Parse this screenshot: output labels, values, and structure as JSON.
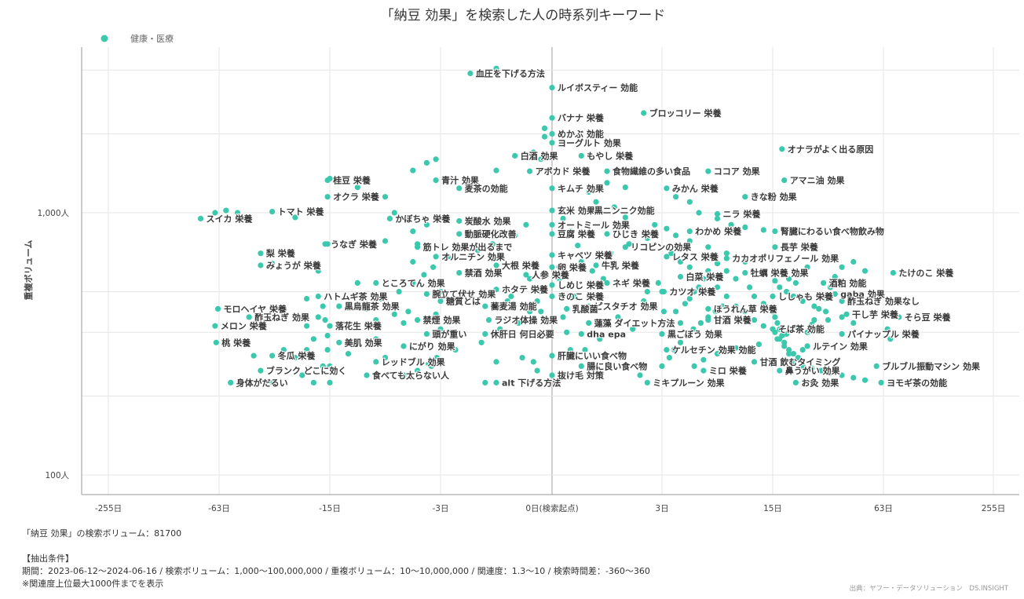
{
  "chart_data": {
    "type": "scatter",
    "title": "「納豆 効果」を検索した人の時系列キーワード",
    "ylabel": "重複ボリューム",
    "legend": [
      {
        "name": "健康・医療",
        "color": "#3cc8ad"
      }
    ],
    "x_ticks": [
      {
        "label": "-255日",
        "pos": -255
      },
      {
        "label": "-63日",
        "pos": -63
      },
      {
        "label": "-15日",
        "pos": -15
      },
      {
        "label": "-3日",
        "pos": -3
      },
      {
        "label": "0日(検索起点)",
        "pos": 0
      },
      {
        "label": "3日",
        "pos": 3
      },
      {
        "label": "15日",
        "pos": 15
      },
      {
        "label": "63日",
        "pos": 63
      },
      {
        "label": "255日",
        "pos": 255
      }
    ],
    "y_ticks": [
      {
        "label": "100人",
        "value": 100
      },
      {
        "label": "1,000人",
        "value": 1000
      }
    ],
    "ylim": [
      85,
      5500
    ],
    "labeled_points": [
      {
        "label": "血圧を下げる方法",
        "x": -2.2,
        "y": 3400
      },
      {
        "label": "ルイボスティー 効能",
        "x": 0,
        "y": 3000
      },
      {
        "label": "ブロッコリー 栄養",
        "x": 2.5,
        "y": 2400
      },
      {
        "label": "バナナ 栄養",
        "x": 0,
        "y": 2300
      },
      {
        "label": "めかぶ 効能",
        "x": 0,
        "y": 2000
      },
      {
        "label": "ヨーグルト 効果",
        "x": 0,
        "y": 1850
      },
      {
        "label": "オナラがよく出る原因",
        "x": 19,
        "y": 1750
      },
      {
        "label": "白酒 効果",
        "x": -1,
        "y": 1650
      },
      {
        "label": "もやし 栄養",
        "x": 0.8,
        "y": 1650
      },
      {
        "label": "アボカド 栄養",
        "x": -0.6,
        "y": 1440
      },
      {
        "label": "食物繊維の多い食品",
        "x": 1.5,
        "y": 1440
      },
      {
        "label": "ココア 効果",
        "x": 8,
        "y": 1440
      },
      {
        "label": "青汁 効果",
        "x": -3.5,
        "y": 1330
      },
      {
        "label": "桂豆 栄養",
        "x": -16,
        "y": 1330
      },
      {
        "label": "アマニ油 効果",
        "x": 20,
        "y": 1330
      },
      {
        "label": "麦茶の効能",
        "x": -2.5,
        "y": 1240
      },
      {
        "label": "キムチ 効果",
        "x": 0,
        "y": 1240
      },
      {
        "label": "みかん 栄養",
        "x": 3.5,
        "y": 1240
      },
      {
        "label": "オクラ 栄養",
        "x": -16,
        "y": 1150
      },
      {
        "label": "きな粉 効果",
        "x": 12,
        "y": 1150
      },
      {
        "label": "スイカ 栄養",
        "x": -95,
        "y": 950
      },
      {
        "label": "トマト 栄養",
        "x": -40,
        "y": 1010
      },
      {
        "label": "玄米 効果",
        "x": 0,
        "y": 1020
      },
      {
        "label": "黒ニンニク効能",
        "x": 1,
        "y": 1020
      },
      {
        "label": "ニラ 栄養",
        "x": 9,
        "y": 990
      },
      {
        "label": "かぼちゃ 栄養",
        "x": -8.5,
        "y": 950
      },
      {
        "label": "炭酸水 効果",
        "x": -2.5,
        "y": 930
      },
      {
        "label": "オートミール 効果",
        "x": 0,
        "y": 900
      },
      {
        "label": "わかめ 栄養",
        "x": 6,
        "y": 850
      },
      {
        "label": "腎臓にわるい食べ物飲み物",
        "x": 16,
        "y": 850
      },
      {
        "label": "動脈硬化改善",
        "x": -2.5,
        "y": 830
      },
      {
        "label": "豆腐 栄養",
        "x": 0,
        "y": 830
      },
      {
        "label": "ひじき 栄養",
        "x": 1.5,
        "y": 830
      },
      {
        "label": "うなぎ 栄養",
        "x": -17,
        "y": 760
      },
      {
        "label": "筋トレ 効果が出るまで",
        "x": -5.5,
        "y": 740
      },
      {
        "label": "リコピンの効果",
        "x": 2,
        "y": 740
      },
      {
        "label": "長芋 栄養",
        "x": 16,
        "y": 740
      },
      {
        "label": "梨 栄養",
        "x": -45,
        "y": 700
      },
      {
        "label": "オルニチン 効果",
        "x": -3.5,
        "y": 680
      },
      {
        "label": "キャベツ 栄養",
        "x": 0,
        "y": 690
      },
      {
        "label": "レタス 栄養",
        "x": 3.5,
        "y": 680
      },
      {
        "label": "カカオポリフェノール 効果",
        "x": 10,
        "y": 670
      },
      {
        "label": "みょうが 栄養",
        "x": -45,
        "y": 630
      },
      {
        "label": "大根 栄養",
        "x": -1.5,
        "y": 630
      },
      {
        "label": "卵 栄養",
        "x": 0,
        "y": 620
      },
      {
        "label": "牛乳 栄養",
        "x": 1.2,
        "y": 630
      },
      {
        "label": "禁酒 効果",
        "x": -2.5,
        "y": 590
      },
      {
        "label": "人参 栄養",
        "x": -0.7,
        "y": 580
      },
      {
        "label": "牡蠣 栄養 効果",
        "x": 12,
        "y": 590
      },
      {
        "label": "たけのこ 栄養",
        "x": 80,
        "y": 590
      },
      {
        "label": "白菜 栄養",
        "x": 5,
        "y": 570
      },
      {
        "label": "ところてん 効果",
        "x": -10,
        "y": 540
      },
      {
        "label": "しめじ 栄養",
        "x": 0,
        "y": 530
      },
      {
        "label": "ネギ 栄養",
        "x": 1.5,
        "y": 540
      },
      {
        "label": "酒粕 効能",
        "x": 37,
        "y": 540
      },
      {
        "label": "ホタテ 栄養",
        "x": -1.5,
        "y": 510
      },
      {
        "label": "カツオ 栄養",
        "x": 3.2,
        "y": 500
      },
      {
        "label": "腕立て伏せ 効果",
        "x": -4.5,
        "y": 490
      },
      {
        "label": "ハトムギ茶 効果",
        "x": -20,
        "y": 480
      },
      {
        "label": "きのこ 栄養",
        "x": 0,
        "y": 480
      },
      {
        "label": "ししゃも 栄養",
        "x": 15,
        "y": 480
      },
      {
        "label": "gaba 効果",
        "x": 42,
        "y": 490
      },
      {
        "label": "糖質とは",
        "x": -3,
        "y": 460
      },
      {
        "label": "酢玉ねぎ 効果なし",
        "x": 45,
        "y": 460
      },
      {
        "label": "黒烏龍茶 効果",
        "x": -14,
        "y": 440
      },
      {
        "label": "蕎麦湯 効能",
        "x": -1.8,
        "y": 440
      },
      {
        "label": "ピスタチオ 効果",
        "x": 1,
        "y": 440
      },
      {
        "label": "モロヘイヤ 栄養",
        "x": -65,
        "y": 430
      },
      {
        "label": "乳酸菌",
        "x": 0.4,
        "y": 430
      },
      {
        "label": "ほうれん草 栄養",
        "x": 8,
        "y": 430
      },
      {
        "label": "干し芋 栄養",
        "x": 47,
        "y": 410
      },
      {
        "label": "酢玉ねぎ 効果",
        "x": -50,
        "y": 400
      },
      {
        "label": "そら豆 栄養",
        "x": 90,
        "y": 400
      },
      {
        "label": "禁煙 効果",
        "x": -5.5,
        "y": 390
      },
      {
        "label": "ラジオ体操 効果",
        "x": -1.7,
        "y": 390
      },
      {
        "label": "甘酒 栄養",
        "x": 8,
        "y": 390
      },
      {
        "label": "蓮藻 ダイエット方法",
        "x": 1,
        "y": 380
      },
      {
        "label": "メロン 栄養",
        "x": -70,
        "y": 370
      },
      {
        "label": "落花生 栄養",
        "x": -15,
        "y": 370
      },
      {
        "label": "そば茶 効能",
        "x": 15,
        "y": 360
      },
      {
        "label": "頭が重い",
        "x": -4.5,
        "y": 345
      },
      {
        "label": "休肝日 何日必要",
        "x": -1.8,
        "y": 345
      },
      {
        "label": "dha epa",
        "x": 0.8,
        "y": 345
      },
      {
        "label": "黒ごぼう 効果",
        "x": 3,
        "y": 345
      },
      {
        "label": "パイナップル 栄養",
        "x": 45,
        "y": 345
      },
      {
        "label": "桃 栄養",
        "x": -68,
        "y": 320
      },
      {
        "label": "美肌 効果",
        "x": -14,
        "y": 320
      },
      {
        "label": "ルテイン 効果",
        "x": 30,
        "y": 310
      },
      {
        "label": "にがり 効果",
        "x": -7,
        "y": 310
      },
      {
        "label": "ケルセチン 効果 効能",
        "x": 3.5,
        "y": 300
      },
      {
        "label": "冬瓜 栄養",
        "x": -40,
        "y": 285
      },
      {
        "label": "肝臓にいい食べ物",
        "x": 0,
        "y": 285
      },
      {
        "label": "レッドブル 効果",
        "x": -10,
        "y": 270
      },
      {
        "label": "甘酒 飲むタイミング",
        "x": 13,
        "y": 270
      },
      {
        "label": "腸に良い食べ物",
        "x": 0.8,
        "y": 260
      },
      {
        "label": "ブルブル振動マシン 効果",
        "x": 60,
        "y": 260
      },
      {
        "label": "ブランク どこに効く",
        "x": -45,
        "y": 250
      },
      {
        "label": "ミロ 栄養",
        "x": 7.5,
        "y": 250
      },
      {
        "label": "鼻うがい 効果",
        "x": 18,
        "y": 250
      },
      {
        "label": "食べても太らない人",
        "x": -11,
        "y": 240
      },
      {
        "label": "抜け毛 対策",
        "x": 0,
        "y": 240
      },
      {
        "label": "身体がだるい",
        "x": -58,
        "y": 225
      },
      {
        "label": "alt 下げる方法",
        "x": -1.5,
        "y": 225
      },
      {
        "label": "ミキプルーン 効果",
        "x": 2.6,
        "y": 225
      },
      {
        "label": "お灸 効果",
        "x": 25,
        "y": 225
      },
      {
        "label": "ヨモギ茶の効能",
        "x": 62,
        "y": 225
      }
    ],
    "other_points": [
      [
        -1.5,
        3550
      ],
      [
        -6,
        1450
      ],
      [
        -4.5,
        1550
      ],
      [
        -3.5,
        1600
      ],
      [
        -1.5,
        1450
      ],
      [
        -15,
        1350
      ],
      [
        -12,
        1250
      ],
      [
        -9,
        1150
      ],
      [
        -0.2,
        2100
      ],
      [
        -0.2,
        1950
      ],
      [
        -0.3,
        1600
      ],
      [
        -0.5,
        1700
      ],
      [
        -70,
        1000
      ],
      [
        -55,
        1000
      ],
      [
        -60,
        1020
      ],
      [
        -30,
        960
      ],
      [
        -8,
        1000
      ],
      [
        -6,
        850
      ],
      [
        -4.5,
        900
      ],
      [
        -16,
        760
      ],
      [
        -9,
        780
      ],
      [
        -5.5,
        760
      ],
      [
        -40,
        640
      ],
      [
        -20,
        600
      ],
      [
        -6,
        650
      ],
      [
        -12,
        540
      ],
      [
        -3,
        500
      ],
      [
        -2.5,
        470
      ],
      [
        -1.2,
        460
      ],
      [
        -1.1,
        480
      ],
      [
        -0.6,
        560
      ],
      [
        -0.3,
        500
      ],
      [
        -0.3,
        420
      ],
      [
        -25,
        470
      ],
      [
        -18,
        440
      ],
      [
        -11,
        430
      ],
      [
        -8,
        410
      ],
      [
        -6.5,
        420
      ],
      [
        -3.5,
        410
      ],
      [
        -20,
        400
      ],
      [
        -17,
        390
      ],
      [
        -10,
        390
      ],
      [
        -7,
        380
      ],
      [
        -25,
        370
      ],
      [
        -3,
        360
      ],
      [
        -1.4,
        360
      ],
      [
        -16,
        340
      ],
      [
        -10,
        330
      ],
      [
        -22,
        330
      ],
      [
        -35,
        300
      ],
      [
        -25,
        300
      ],
      [
        -16,
        300
      ],
      [
        -13,
        290
      ],
      [
        -9,
        280
      ],
      [
        -48,
        285
      ],
      [
        -30,
        280
      ],
      [
        -15,
        260
      ],
      [
        -0.8,
        280
      ],
      [
        -1.5,
        270
      ],
      [
        -4,
        260
      ],
      [
        -0.5,
        270
      ],
      [
        -27,
        240
      ],
      [
        -22,
        225
      ],
      [
        -15,
        225
      ],
      [
        -40,
        225
      ],
      [
        -18,
        260
      ],
      [
        -1.8,
        225
      ],
      [
        -0.4,
        250
      ],
      [
        0.2,
        620
      ],
      [
        0.2,
        560
      ],
      [
        0.6,
        480
      ],
      [
        0.3,
        400
      ],
      [
        0.4,
        350
      ],
      [
        0.5,
        300
      ],
      [
        0.9,
        300
      ],
      [
        1.3,
        330
      ],
      [
        1.8,
        400
      ],
      [
        2.2,
        360
      ],
      [
        2.5,
        460
      ],
      [
        3,
        500
      ],
      [
        3.2,
        420
      ],
      [
        4.5,
        420
      ],
      [
        5,
        380
      ],
      [
        5.5,
        450
      ],
      [
        6,
        470
      ],
      [
        6.5,
        500
      ],
      [
        7,
        520
      ],
      [
        7.5,
        560
      ],
      [
        8,
        600
      ],
      [
        9,
        640
      ],
      [
        10,
        600
      ],
      [
        11,
        560
      ],
      [
        12.5,
        520
      ],
      [
        13,
        480
      ],
      [
        14,
        450
      ],
      [
        15,
        420
      ],
      [
        16,
        400
      ],
      [
        17,
        380
      ],
      [
        18,
        360
      ],
      [
        19,
        340
      ],
      [
        20,
        320
      ],
      [
        22,
        300
      ],
      [
        24,
        290
      ],
      [
        26,
        280
      ],
      [
        28,
        300
      ],
      [
        30,
        350
      ],
      [
        33,
        390
      ],
      [
        35,
        430
      ],
      [
        38,
        470
      ],
      [
        40,
        520
      ],
      [
        42,
        570
      ],
      [
        45,
        620
      ],
      [
        50,
        650
      ],
      [
        55,
        600
      ],
      [
        20,
        600
      ],
      [
        22,
        560
      ],
      [
        25,
        540
      ],
      [
        27,
        580
      ],
      [
        30,
        620
      ],
      [
        18,
        520
      ],
      [
        16,
        550
      ],
      [
        14,
        600
      ],
      [
        12,
        650
      ],
      [
        10,
        700
      ],
      [
        8,
        740
      ],
      [
        6,
        780
      ],
      [
        4.5,
        820
      ],
      [
        3.5,
        870
      ],
      [
        2.8,
        900
      ],
      [
        2,
        960
      ],
      [
        1.7,
        1050
      ],
      [
        1.2,
        1100
      ],
      [
        1,
        1200
      ],
      [
        1.5,
        1300
      ],
      [
        2,
        1250
      ],
      [
        4.5,
        1150
      ],
      [
        6,
        1100
      ],
      [
        7,
        1000
      ],
      [
        9,
        950
      ],
      [
        10.5,
        900
      ],
      [
        12,
        880
      ],
      [
        14,
        860
      ],
      [
        4,
        700
      ],
      [
        5,
        650
      ],
      [
        6,
        620
      ],
      [
        7,
        580
      ],
      [
        9,
        520
      ],
      [
        10,
        480
      ],
      [
        11,
        440
      ],
      [
        12,
        420
      ],
      [
        13,
        390
      ],
      [
        14,
        370
      ],
      [
        16,
        350
      ],
      [
        18,
        330
      ],
      [
        20,
        310
      ],
      [
        22,
        290
      ],
      [
        24,
        270
      ],
      [
        28,
        260
      ],
      [
        32,
        255
      ],
      [
        36,
        250
      ],
      [
        40,
        245
      ],
      [
        45,
        240
      ],
      [
        50,
        235
      ],
      [
        55,
        230
      ],
      [
        70,
        360
      ],
      [
        75,
        330
      ],
      [
        50,
        380
      ],
      [
        45,
        400
      ],
      [
        38,
        420
      ],
      [
        33,
        440
      ],
      [
        28,
        460
      ],
      [
        24,
        480
      ],
      [
        21,
        500
      ],
      [
        2.4,
        240
      ],
      [
        3,
        260
      ],
      [
        3.8,
        280
      ],
      [
        4.3,
        300
      ],
      [
        5,
        320
      ],
      [
        5.7,
        340
      ],
      [
        6.4,
        360
      ],
      [
        7.2,
        380
      ],
      [
        8,
        400
      ],
      [
        8.8,
        420
      ],
      [
        9.6,
        440
      ],
      [
        2.6,
        500
      ],
      [
        2.9,
        540
      ],
      [
        1.4,
        560
      ],
      [
        1.1,
        600
      ],
      [
        0.8,
        650
      ],
      [
        1.6,
        700
      ],
      [
        2.1,
        760
      ],
      [
        2.6,
        800
      ],
      [
        0.7,
        750
      ],
      [
        0.5,
        850
      ],
      [
        0.3,
        950
      ],
      [
        -0.7,
        900
      ],
      [
        -1.0,
        820
      ],
      [
        -1.6,
        760
      ],
      [
        -2.0,
        720
      ],
      [
        -2.8,
        680
      ],
      [
        -3.8,
        620
      ],
      [
        -4.8,
        580
      ],
      [
        -6.0,
        540
      ],
      [
        -7.5,
        500
      ],
      [
        -9.5,
        470
      ],
      [
        -1.3,
        340
      ],
      [
        -1.9,
        320
      ],
      [
        -2.6,
        300
      ],
      [
        -3.4,
        280
      ],
      [
        -4.3,
        265
      ],
      [
        -5.5,
        250
      ],
      [
        -7.0,
        240
      ],
      [
        -0.9,
        380
      ],
      [
        -0.6,
        420
      ],
      [
        -0.4,
        460
      ],
      [
        6.5,
        260
      ],
      [
        7.5,
        275
      ],
      [
        9,
        290
      ],
      [
        11,
        305
      ],
      [
        13.5,
        315
      ],
      [
        17,
        330
      ],
      [
        21,
        345
      ],
      [
        26,
        360
      ],
      [
        32,
        375
      ],
      [
        39,
        390
      ]
    ]
  },
  "footer": {
    "volume": "「納豆 効果」の検索ボリューム：81700",
    "conditions_title": "【抽出条件】",
    "conditions": "期間：2023-06-12〜2024-06-16 / 検索ボリューム：1,000〜100,000,000 / 重複ボリューム：10〜10,000,000 / 関連度：1.3〜10 / 検索時間差：-360〜360",
    "note": "※関連度上位最大1000件までを表示",
    "source": "出典：ヤフー・データソリューション　DS.INSIGHT"
  }
}
